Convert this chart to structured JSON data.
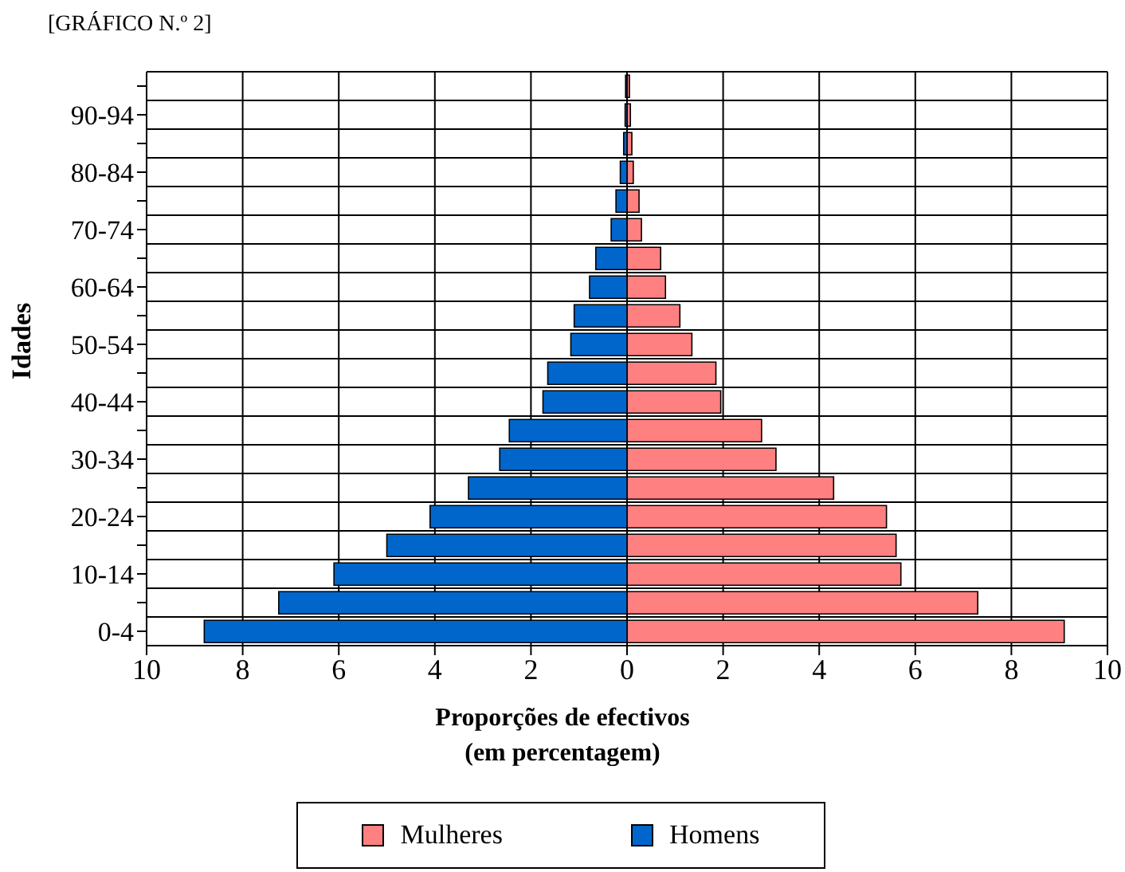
{
  "chart_data": {
    "type": "bar",
    "orientation": "horizontal",
    "stacked": true,
    "title": "[GRÁFICO N.º 2]",
    "xlabel": "Proporções de efectivos\n(em percentagem)",
    "ylabel": "Idades",
    "categories": [
      null,
      "90-94",
      null,
      "80-84",
      null,
      "70-74",
      null,
      "60-64",
      null,
      "50-54",
      null,
      "40-44",
      null,
      "30-34",
      null,
      "20-24",
      null,
      "10-14",
      null,
      "0-4"
    ],
    "series": [
      {
        "name": "Mulheres",
        "color": "#ff8080",
        "values": [
          0.05,
          0.07,
          0.1,
          0.13,
          0.25,
          0.3,
          0.7,
          0.8,
          1.1,
          1.35,
          1.85,
          1.95,
          2.8,
          3.1,
          4.3,
          5.4,
          5.6,
          5.7,
          7.3,
          9.1
        ]
      },
      {
        "name": "Homens",
        "color": "#0066cc",
        "values": [
          -0.03,
          -0.04,
          -0.07,
          -0.14,
          -0.23,
          -0.33,
          -0.65,
          -0.78,
          -1.1,
          -1.17,
          -1.65,
          -1.75,
          -2.45,
          -2.65,
          -3.3,
          -4.1,
          -5.0,
          -6.1,
          -7.25,
          -8.8
        ]
      }
    ],
    "xlim": [
      -10,
      10
    ],
    "xticks": [
      {
        "value": -10,
        "label": "10"
      },
      {
        "value": -8,
        "label": "8"
      },
      {
        "value": -6,
        "label": "6"
      },
      {
        "value": -4,
        "label": "4"
      },
      {
        "value": -2,
        "label": "2"
      },
      0,
      2,
      4,
      6,
      8,
      10
    ],
    "grid": true,
    "legend": "bottom"
  }
}
